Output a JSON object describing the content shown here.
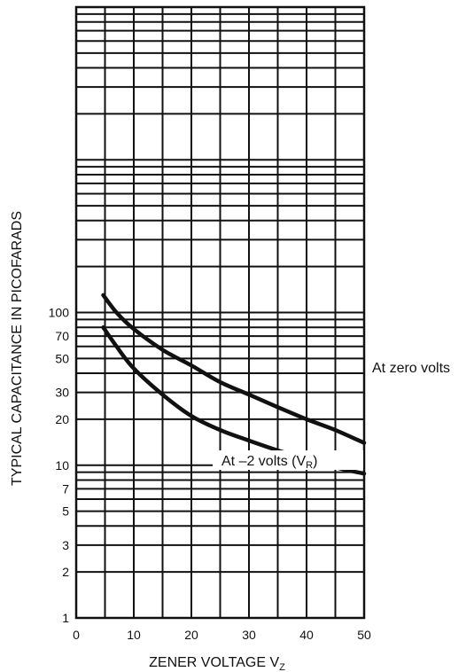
{
  "chart_data": {
    "type": "line",
    "xlabel": "ZENER VOLTAGE V",
    "xlabel_sub": "Z",
    "ylabel": "TYPICAL CAPACITANCE IN PICOFARADS",
    "xlim": [
      0,
      50
    ],
    "y_scale": "log",
    "ylim": [
      1,
      10000
    ],
    "grid": true,
    "x_ticks": [
      0,
      10,
      20,
      30,
      40,
      50
    ],
    "x_tick_labels": [
      "0",
      "10",
      "20",
      "30",
      "40",
      "50"
    ],
    "y_tick_labels": [
      {
        "value": 1,
        "label": "1"
      },
      {
        "value": 2,
        "label": "2"
      },
      {
        "value": 3,
        "label": "3"
      },
      {
        "value": 5,
        "label": "5"
      },
      {
        "value": 7,
        "label": "7"
      },
      {
        "value": 10,
        "label": "10"
      },
      {
        "value": 20,
        "label": "20"
      },
      {
        "value": 30,
        "label": "30"
      },
      {
        "value": 50,
        "label": "50"
      },
      {
        "value": 70,
        "label": "70"
      },
      {
        "value": 100,
        "label": "100"
      }
    ],
    "series": [
      {
        "name": "At zero volts",
        "x": [
          4.7,
          7,
          10,
          15,
          20,
          25,
          30,
          35,
          40,
          45,
          50
        ],
        "y": [
          130,
          100,
          78,
          57,
          45,
          35,
          29,
          24,
          20,
          17,
          14
        ]
      },
      {
        "name": "At –2 volts (V",
        "name_sub": "R",
        "name_suffix": ")",
        "x": [
          4.7,
          7,
          10,
          15,
          20,
          25,
          30,
          35,
          40,
          45,
          50
        ],
        "y": [
          80,
          60,
          43,
          29,
          21,
          17,
          14.5,
          12.5,
          11,
          9.7,
          8.8
        ]
      }
    ]
  }
}
